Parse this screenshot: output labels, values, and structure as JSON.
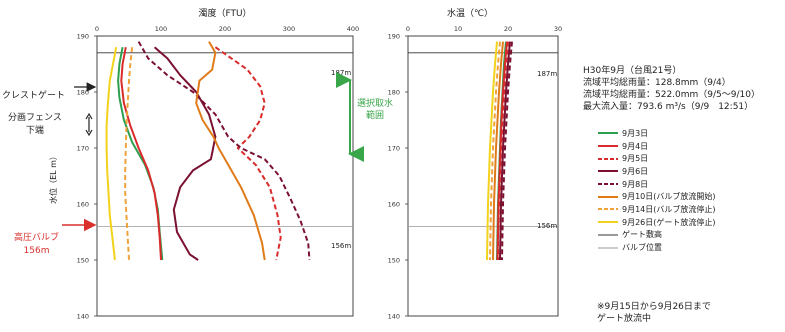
{
  "page": {
    "title": "",
    "annotations": {
      "crest_gate": "クレストゲート",
      "fence_bottom_1": "分画フェンス",
      "fence_bottom_2": "下端",
      "intake_range_1": "選択取水",
      "intake_range_2": "範囲",
      "valve_1": "高圧バルブ",
      "valve_2": "156m",
      "level_187": "187m",
      "level_156": "156m"
    },
    "event": {
      "title": "H30年9月（台風21号）",
      "line1": "流域平均総雨量：128.8mm（9/4）",
      "line2": "流域平均総雨量：522.0mm（9/5〜9/10）",
      "line3": "最大流入量：793.6 m³/s（9/9　12:51）"
    },
    "footnote": {
      "line1": "※9月15日から9月26日まで",
      "line2": "ゲート放流中"
    },
    "colors": {
      "d3": "#2e9e4f",
      "d4": "#d92b2b",
      "d5": "#d92b2b",
      "d6": "#7b1030",
      "d8": "#7b1030",
      "d10": "#e07b1a",
      "d14": "#f0a23a",
      "d26": "#f2d21b",
      "gate": "#333333",
      "valve": "#999999",
      "accent_green": "#3aa64a",
      "accent_red": "#d9302c"
    }
  },
  "chart_data": [
    {
      "type": "line",
      "title": "濁度（FTU）",
      "xlabel": "濁度（FTU）",
      "ylabel": "水位（EL m）",
      "xlim": [
        0,
        400
      ],
      "ylim": [
        140,
        190
      ],
      "xticks": [
        "0",
        "100",
        "200",
        "300",
        "400"
      ],
      "yticks": [
        "140",
        "150",
        "160",
        "170",
        "180",
        "190"
      ],
      "reference_lines": [
        {
          "name": "ゲート敷高",
          "y": 187
        },
        {
          "name": "バルブ位置",
          "y": 156
        }
      ],
      "series": [
        {
          "name": "9月3日",
          "style": "solid",
          "color": "#2e9e4f",
          "points": [
            [
              40,
              188
            ],
            [
              35,
              185
            ],
            [
              33,
              182
            ],
            [
              35,
              179
            ],
            [
              42,
              175
            ],
            [
              55,
              171
            ],
            [
              75,
              167
            ],
            [
              88,
              163
            ],
            [
              95,
              159
            ],
            [
              98,
              155
            ],
            [
              102,
              150
            ]
          ]
        },
        {
          "name": "9月4日",
          "style": "solid",
          "color": "#d92b2b",
          "points": [
            [
              45,
              188
            ],
            [
              40,
              185
            ],
            [
              38,
              182
            ],
            [
              42,
              178
            ],
            [
              52,
              174
            ],
            [
              65,
              170
            ],
            [
              80,
              166
            ],
            [
              90,
              162
            ],
            [
              95,
              158
            ],
            [
              98,
              154
            ],
            [
              100,
              150
            ]
          ]
        },
        {
          "name": "9月5日",
          "style": "dashed",
          "color": "#d92b2b",
          "points": [
            [
              185,
              188
            ],
            [
              210,
              186
            ],
            [
              235,
              184
            ],
            [
              255,
              181
            ],
            [
              262,
              178
            ],
            [
              255,
              175
            ],
            [
              238,
              172
            ],
            [
              220,
              170
            ],
            [
              248,
              167
            ],
            [
              270,
              163
            ],
            [
              282,
              158
            ],
            [
              287,
              154
            ],
            [
              280,
              150
            ]
          ]
        },
        {
          "name": "9月6日",
          "style": "solid",
          "color": "#7b1030",
          "points": [
            [
              90,
              188
            ],
            [
              110,
              186
            ],
            [
              130,
              183
            ],
            [
              155,
              180
            ],
            [
              175,
              176
            ],
            [
              185,
              172
            ],
            [
              178,
              168
            ],
            [
              150,
              166
            ],
            [
              130,
              163
            ],
            [
              120,
              159
            ],
            [
              125,
              155
            ],
            [
              145,
              151
            ],
            [
              158,
              150
            ]
          ]
        },
        {
          "name": "9月8日",
          "style": "dashed",
          "color": "#7b1030",
          "points": [
            [
              65,
              189
            ],
            [
              80,
              186
            ],
            [
              110,
              183
            ],
            [
              150,
              180
            ],
            [
              185,
              176
            ],
            [
              205,
              172
            ],
            [
              225,
              170
            ],
            [
              262,
              168
            ],
            [
              285,
              165
            ],
            [
              302,
              161
            ],
            [
              318,
              157
            ],
            [
              330,
              153
            ],
            [
              332,
              150
            ]
          ]
        },
        {
          "name": "9月10日(バルブ放流開始)",
          "style": "solid",
          "color": "#e07b1a",
          "points": [
            [
              175,
              189
            ],
            [
              185,
              187
            ],
            [
              180,
              184
            ],
            [
              160,
              182
            ],
            [
              155,
              178
            ],
            [
              165,
              175
            ],
            [
              182,
              172
            ],
            [
              190,
              170
            ],
            [
              205,
              167
            ],
            [
              225,
              163
            ],
            [
              245,
              158
            ],
            [
              258,
              153
            ],
            [
              262,
              150
            ]
          ]
        },
        {
          "name": "9月14日(バルブ放流停止)",
          "style": "dashed",
          "color": "#f0a23a",
          "points": [
            [
              55,
              188
            ],
            [
              52,
              185
            ],
            [
              50,
              182
            ],
            [
              48,
              178
            ],
            [
              46,
              174
            ],
            [
              45,
              170
            ],
            [
              44,
              166
            ],
            [
              44,
              162
            ],
            [
              46,
              158
            ],
            [
              48,
              154
            ],
            [
              50,
              150
            ]
          ]
        },
        {
          "name": "9月26日(ゲート放流停止)",
          "style": "solid",
          "color": "#f2d21b",
          "points": [
            [
              30,
              188
            ],
            [
              25,
              185
            ],
            [
              20,
              182
            ],
            [
              17,
              178
            ],
            [
              15,
              174
            ],
            [
              15,
              170
            ],
            [
              16,
              166
            ],
            [
              18,
              162
            ],
            [
              20,
              158
            ],
            [
              24,
              154
            ],
            [
              28,
              150
            ]
          ]
        }
      ]
    },
    {
      "type": "line",
      "title": "水温（℃）",
      "xlabel": "水温（℃）",
      "xlim": [
        0,
        30
      ],
      "ylim": [
        140,
        190
      ],
      "xticks": [
        "0",
        "10",
        "20",
        "30"
      ],
      "yticks": [
        "140",
        "150",
        "160",
        "170",
        "180",
        "190"
      ],
      "reference_lines": [
        {
          "name": "ゲート敷高",
          "y": 187
        },
        {
          "name": "バルブ位置",
          "y": 156
        }
      ],
      "series": [
        {
          "name": "9月3日",
          "style": "solid",
          "color": "#2e9e4f",
          "points": [
            [
              19.6,
              189
            ],
            [
              19.2,
              185
            ],
            [
              18.9,
              180
            ],
            [
              18.6,
              175
            ],
            [
              18.4,
              170
            ],
            [
              18.2,
              165
            ],
            [
              18.0,
              160
            ],
            [
              17.9,
              155
            ],
            [
              17.8,
              150
            ]
          ]
        },
        {
          "name": "9月4日",
          "style": "solid",
          "color": "#d92b2b",
          "points": [
            [
              19.8,
              189
            ],
            [
              19.4,
              185
            ],
            [
              19.0,
              180
            ],
            [
              18.7,
              175
            ],
            [
              18.5,
              170
            ],
            [
              18.3,
              165
            ],
            [
              18.1,
              160
            ],
            [
              18.0,
              155
            ],
            [
              17.9,
              150
            ]
          ]
        },
        {
          "name": "9月5日",
          "style": "dashed",
          "color": "#d92b2b",
          "points": [
            [
              20.0,
              189
            ],
            [
              19.6,
              185
            ],
            [
              19.2,
              180
            ],
            [
              18.9,
              175
            ],
            [
              18.6,
              170
            ],
            [
              18.4,
              165
            ],
            [
              18.2,
              160
            ],
            [
              18.0,
              155
            ],
            [
              18.0,
              150
            ]
          ]
        },
        {
          "name": "9月6日",
          "style": "solid",
          "color": "#7b1030",
          "points": [
            [
              20.4,
              189
            ],
            [
              20.0,
              185
            ],
            [
              19.6,
              180
            ],
            [
              19.3,
              175
            ],
            [
              19.0,
              170
            ],
            [
              18.8,
              165
            ],
            [
              18.6,
              160
            ],
            [
              18.5,
              155
            ],
            [
              18.4,
              150
            ]
          ]
        },
        {
          "name": "9月8日",
          "style": "dashed",
          "color": "#7b1030",
          "points": [
            [
              20.8,
              189
            ],
            [
              20.4,
              185
            ],
            [
              20.0,
              180
            ],
            [
              19.7,
              175
            ],
            [
              19.4,
              170
            ],
            [
              19.2,
              165
            ],
            [
              19.0,
              160
            ],
            [
              18.9,
              155
            ],
            [
              18.8,
              150
            ]
          ]
        },
        {
          "name": "9月10日(バルブ放流開始)",
          "style": "solid",
          "color": "#e07b1a",
          "points": [
            [
              19.0,
              189
            ],
            [
              18.6,
              185
            ],
            [
              18.2,
              180
            ],
            [
              17.9,
              175
            ],
            [
              17.6,
              170
            ],
            [
              17.4,
              165
            ],
            [
              17.2,
              160
            ],
            [
              17.1,
              155
            ],
            [
              17.0,
              150
            ]
          ]
        },
        {
          "name": "9月14日(バルブ放流停止)",
          "style": "dashed",
          "color": "#f0a23a",
          "points": [
            [
              18.4,
              189
            ],
            [
              18.0,
              185
            ],
            [
              17.6,
              180
            ],
            [
              17.3,
              175
            ],
            [
              17.0,
              170
            ],
            [
              16.8,
              165
            ],
            [
              16.6,
              160
            ],
            [
              16.5,
              155
            ],
            [
              16.4,
              150
            ]
          ]
        },
        {
          "name": "9月26日(ゲート放流停止)",
          "style": "solid",
          "color": "#f2d21b",
          "points": [
            [
              17.8,
              189
            ],
            [
              17.4,
              185
            ],
            [
              17.0,
              180
            ],
            [
              16.7,
              175
            ],
            [
              16.4,
              170
            ],
            [
              16.2,
              165
            ],
            [
              16.0,
              160
            ],
            [
              15.9,
              155
            ],
            [
              15.8,
              150
            ]
          ]
        }
      ]
    }
  ],
  "legend": {
    "items": [
      {
        "label": "9月3日",
        "style": "solid",
        "color": "#2e9e4f"
      },
      {
        "label": "9月4日",
        "style": "solid",
        "color": "#d92b2b"
      },
      {
        "label": "9月5日",
        "style": "dashed",
        "color": "#d92b2b"
      },
      {
        "label": "9月6日",
        "style": "solid",
        "color": "#7b1030"
      },
      {
        "label": "9月8日",
        "style": "dashed",
        "color": "#7b1030"
      },
      {
        "label": "9月10日(バルブ放流開始)",
        "style": "solid",
        "color": "#e07b1a"
      },
      {
        "label": "9月14日(バルブ放流停止)",
        "style": "dashed",
        "color": "#f0a23a"
      },
      {
        "label": "9月26日(ゲート放流停止)",
        "style": "solid",
        "color": "#f2d21b"
      },
      {
        "label": "ゲート敷高",
        "style": "ref",
        "color": "#333333"
      },
      {
        "label": "バルブ位置",
        "style": "ref",
        "color": "#999999"
      }
    ]
  }
}
